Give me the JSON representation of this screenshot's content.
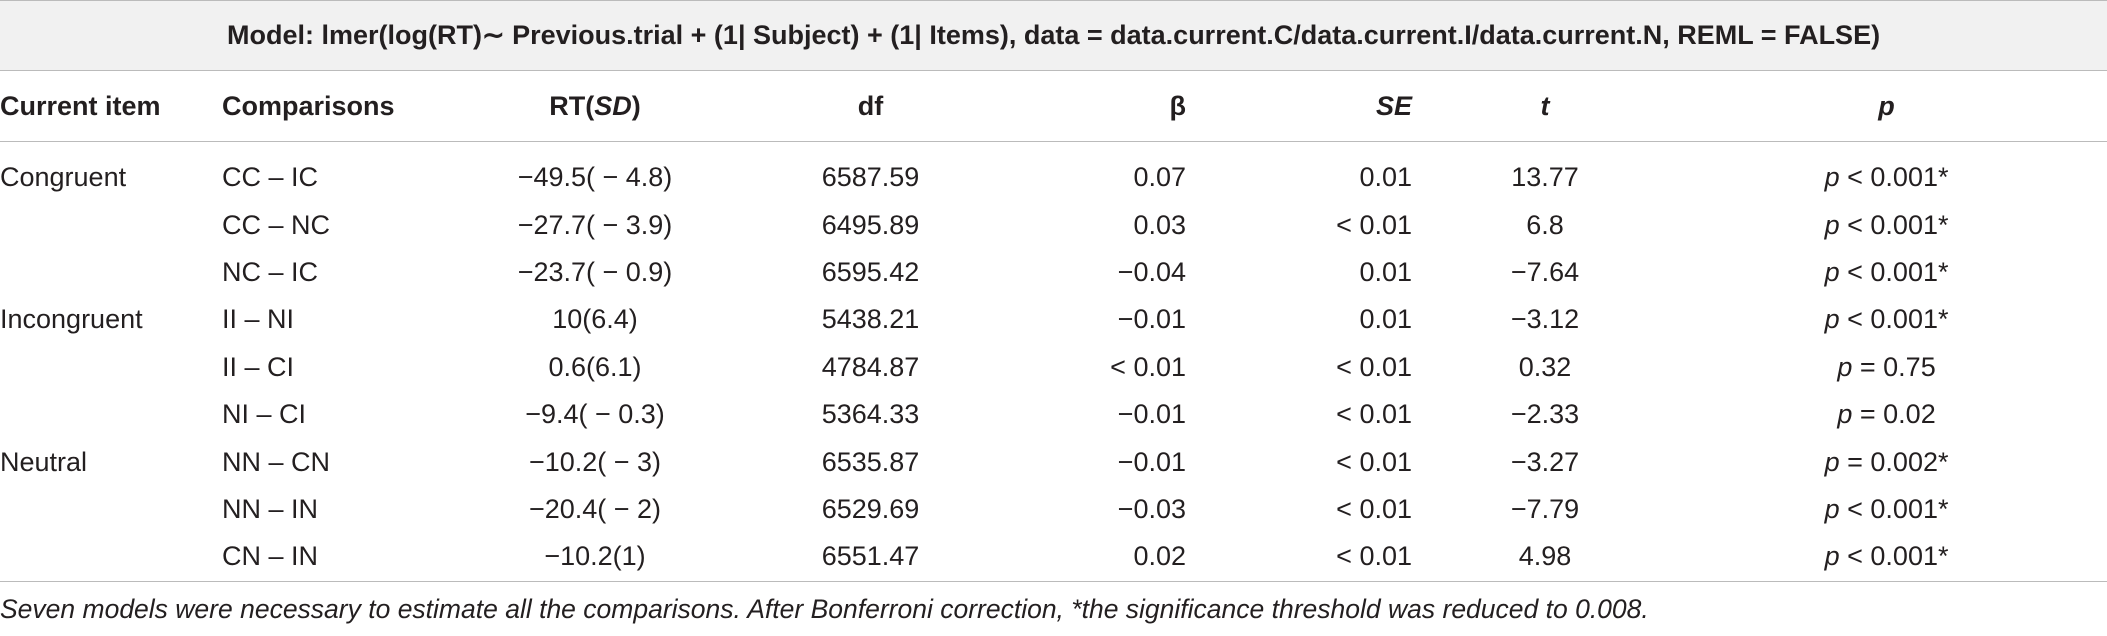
{
  "table": {
    "title": "Model: lmer(log(RT)∼ Previous.trial + (1| Subject) + (1| Items), data = data.current.C/data.current.I/data.current.N, REML = FALSE)",
    "header": [
      "Current item",
      "Comparisons",
      [
        "RT(",
        "SD",
        ")"
      ],
      "df",
      "β",
      "SE",
      "t",
      "p"
    ],
    "rows": [
      [
        "Congruent",
        "CC – IC",
        "−49.5( − 4.8)",
        "6587.59",
        "0.07",
        "0.01",
        "13.77",
        [
          "p",
          "< 0.001*"
        ]
      ],
      [
        null,
        "CC – NC",
        "−27.7( − 3.9)",
        "6495.89",
        "0.03",
        "< 0.01",
        "6.8",
        [
          "p",
          "< 0.001*"
        ]
      ],
      [
        null,
        "NC – IC",
        "−23.7( − 0.9)",
        "6595.42",
        "−0.04",
        "0.01",
        "−7.64",
        [
          "p",
          "< 0.001*"
        ]
      ],
      [
        "Incongruent",
        "II – NI",
        "10(6.4)",
        "5438.21",
        "−0.01",
        "0.01",
        "−3.12",
        [
          "p",
          "< 0.001*"
        ]
      ],
      [
        null,
        "II – CI",
        "0.6(6.1)",
        "4784.87",
        "< 0.01",
        "< 0.01",
        "0.32",
        [
          "p",
          "= 0.75"
        ]
      ],
      [
        null,
        "NI – CI",
        "−9.4( − 0.3)",
        "5364.33",
        "−0.01",
        "< 0.01",
        "−2.33",
        [
          "p",
          "= 0.02"
        ]
      ],
      [
        "Neutral",
        "NN – CN",
        "−10.2( − 3)",
        "6535.87",
        "−0.01",
        "< 0.01",
        "−3.27",
        [
          "p",
          "= 0.002*"
        ]
      ],
      [
        null,
        "NN – IN",
        "−20.4( − 2)",
        "6529.69",
        "−0.03",
        "< 0.01",
        "−7.79",
        [
          "p",
          "< 0.001*"
        ]
      ],
      [
        null,
        "CN – IN",
        "−10.2(1)",
        "6551.47",
        "0.02",
        "< 0.01",
        "4.98",
        [
          "p",
          "< 0.001*"
        ]
      ]
    ],
    "footnote": "Seven models were necessary to estimate all the comparisons. After Bonferroni correction, *the significance threshold was reduced to 0.008."
  }
}
